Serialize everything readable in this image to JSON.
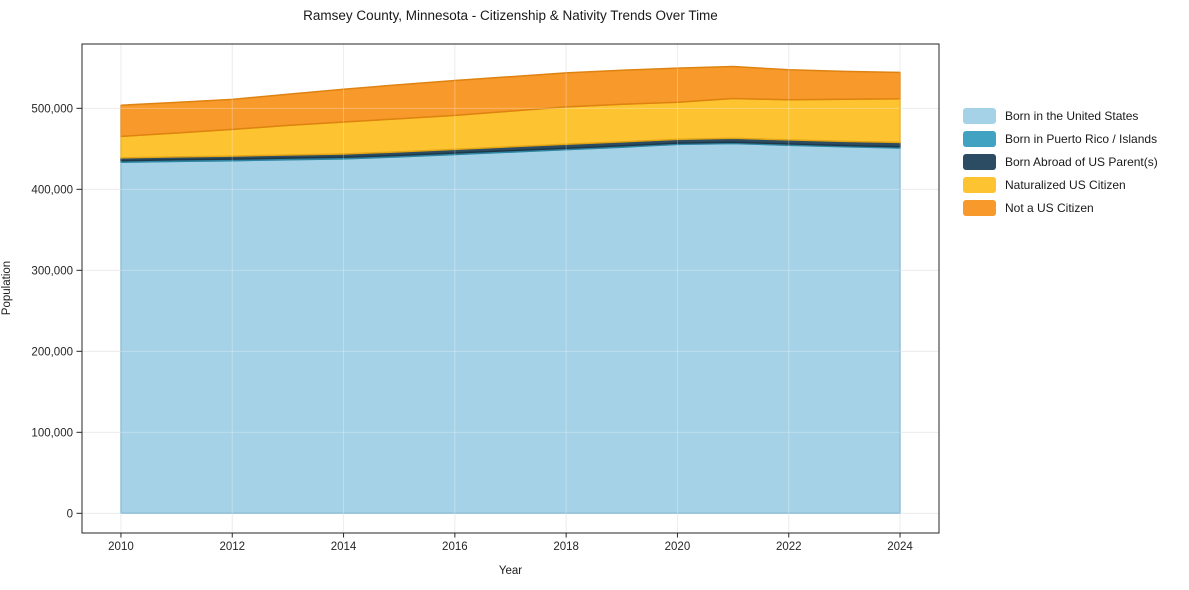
{
  "chart_data": {
    "type": "area",
    "stacked": true,
    "title": "Ramsey County, Minnesota - Citizenship & Nativity Trends Over Time",
    "xlabel": "Year",
    "ylabel": "Population",
    "x": [
      2010,
      2011,
      2012,
      2013,
      2014,
      2015,
      2016,
      2017,
      2018,
      2019,
      2020,
      2021,
      2022,
      2023,
      2024
    ],
    "series": [
      {
        "name": "Born in the United States",
        "color": "#a6d2e8",
        "edge_color": "#7fb4d2",
        "values": [
          433500,
          434500,
          435300,
          436500,
          437500,
          440000,
          443000,
          446000,
          449000,
          452000,
          455500,
          456500,
          454500,
          452500,
          451000
        ]
      },
      {
        "name": "Born in Puerto Rico / Islands",
        "color": "#41a2c2",
        "edge_color": "#2e86a4",
        "values": [
          1800,
          1900,
          2000,
          2000,
          2000,
          1900,
          1800,
          1800,
          1700,
          1700,
          1600,
          1600,
          1600,
          1600,
          1600
        ]
      },
      {
        "name": "Born Abroad of US Parent(s)",
        "color": "#2b4c63",
        "edge_color": "#1e3848",
        "values": [
          3500,
          3600,
          3700,
          3900,
          4100,
          4300,
          4500,
          4700,
          5000,
          4800,
          4500,
          5000,
          4900,
          5000,
          5200
        ]
      },
      {
        "name": "Naturalized US Citizen",
        "color": "#fdc330",
        "edge_color": "#e2a517",
        "values": [
          26500,
          29500,
          33000,
          36500,
          39500,
          41000,
          42000,
          44000,
          46000,
          46500,
          46000,
          49000,
          49500,
          52000,
          54000
        ]
      },
      {
        "name": "Not a US Citizen",
        "color": "#f89a2b",
        "edge_color": "#de8210",
        "values": [
          38500,
          37800,
          37000,
          38500,
          40500,
          42000,
          43000,
          42500,
          42000,
          42000,
          42000,
          39500,
          37000,
          34500,
          32500
        ]
      }
    ],
    "xticks": [
      2010,
      2012,
      2014,
      2016,
      2018,
      2020,
      2022,
      2024
    ],
    "xticklabels": [
      "2010",
      "2012",
      "2014",
      "2016",
      "2018",
      "2020",
      "2022",
      "2024"
    ],
    "yticks": [
      0,
      100000,
      200000,
      300000,
      400000,
      500000
    ],
    "yticklabels": [
      "0",
      "100,000",
      "200,000",
      "300,000",
      "400,000",
      "500,000"
    ],
    "xlim": [
      2009.3,
      2024.7
    ],
    "ylim": [
      -24300,
      579400
    ],
    "grid": true,
    "grid_color": "#e7e7e7",
    "spine_color": "#262626",
    "legend_position": "right"
  }
}
